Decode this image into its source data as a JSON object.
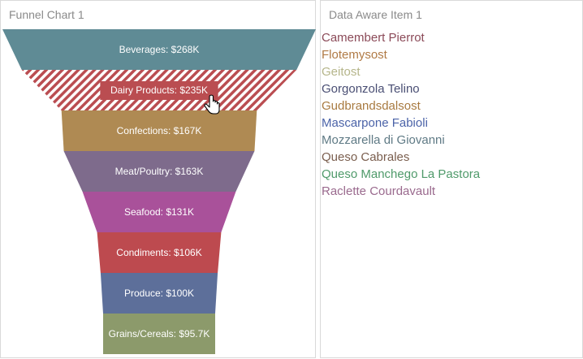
{
  "funnel_panel": {
    "title": "Funnel Chart 1"
  },
  "list_panel": {
    "title": "Data Aware Item 1"
  },
  "chart_data": {
    "type": "funnel",
    "categories": [
      "Beverages",
      "Dairy Products",
      "Confections",
      "Meat/Poultry",
      "Seafood",
      "Condiments",
      "Produce",
      "Grains/Cereals"
    ],
    "values": [
      268,
      235,
      167,
      163,
      131,
      106,
      100,
      95.7
    ],
    "labels": [
      "Beverages: $268K",
      "Dairy Products: $235K",
      "Confections: $167K",
      "Meat/Poultry: $163K",
      "Seafood: $131K",
      "Condiments: $106K",
      "Produce: $100K",
      "Grains/Cereals: $95.7K"
    ],
    "colors": [
      "#5f8b95",
      "#ba4d51",
      "#af8a53",
      "#7e6b8c",
      "#a9519a",
      "#bd4a4f",
      "#5d6f9a",
      "#8c9a6b"
    ],
    "hovered_index": 1
  },
  "list_items": [
    {
      "label": "Camembert Pierrot",
      "color": "#8b4a58"
    },
    {
      "label": "Flotemysost",
      "color": "#b07a45"
    },
    {
      "label": "Geitost",
      "color": "#b5b58a"
    },
    {
      "label": "Gorgonzola Telino",
      "color": "#4a4f74"
    },
    {
      "label": "Gudbrandsdalsost",
      "color": "#a87a40"
    },
    {
      "label": "Mascarpone Fabioli",
      "color": "#4b63a8"
    },
    {
      "label": "Mozzarella di Giovanni",
      "color": "#5f7a85"
    },
    {
      "label": "Queso Cabrales",
      "color": "#7a5e4e"
    },
    {
      "label": "Queso Manchego La Pastora",
      "color": "#4f9a6a"
    },
    {
      "label": "Raclette Courdavault",
      "color": "#9a6a8e"
    }
  ]
}
